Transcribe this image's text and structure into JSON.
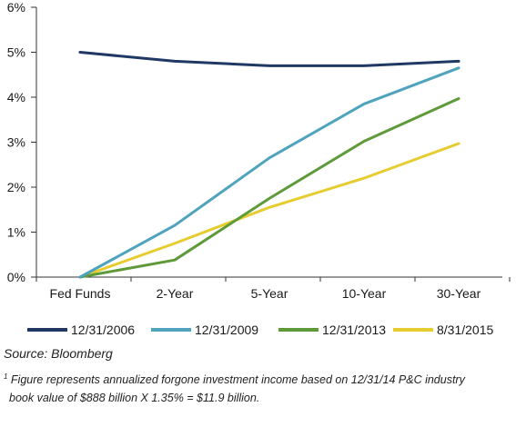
{
  "chart_data": {
    "type": "line",
    "categories": [
      "Fed Funds",
      "2-Year",
      "5-Year",
      "10-Year",
      "30-Year"
    ],
    "y_tick_labels": [
      "0%",
      "1%",
      "2%",
      "3%",
      "4%",
      "5%",
      "6%"
    ],
    "ylim": [
      0,
      6
    ],
    "grid": false,
    "legend_position": "bottom",
    "series": [
      {
        "name": "12/31/2006",
        "color": "#1f3864",
        "values": [
          5.0,
          4.8,
          4.7,
          4.7,
          4.8
        ]
      },
      {
        "name": "12/31/2009",
        "color": "#4fa3bd",
        "values": [
          0.0,
          1.15,
          2.65,
          3.85,
          4.65
        ]
      },
      {
        "name": "12/31/2013",
        "color": "#5e9a3a",
        "values": [
          0.0,
          0.38,
          1.75,
          3.02,
          3.97
        ]
      },
      {
        "name": "8/31/2015",
        "color": "#e6cc2e",
        "values": [
          0.0,
          0.75,
          1.55,
          2.2,
          2.97
        ]
      }
    ]
  },
  "source": "Source:  Bloomberg",
  "footnote": {
    "marker": "1",
    "line1": " Figure represents annualized forgone investment income based on 12/31/14 P&C industry",
    "line2": "book value of $888 billion X 1.35% = $11.9 billion."
  }
}
